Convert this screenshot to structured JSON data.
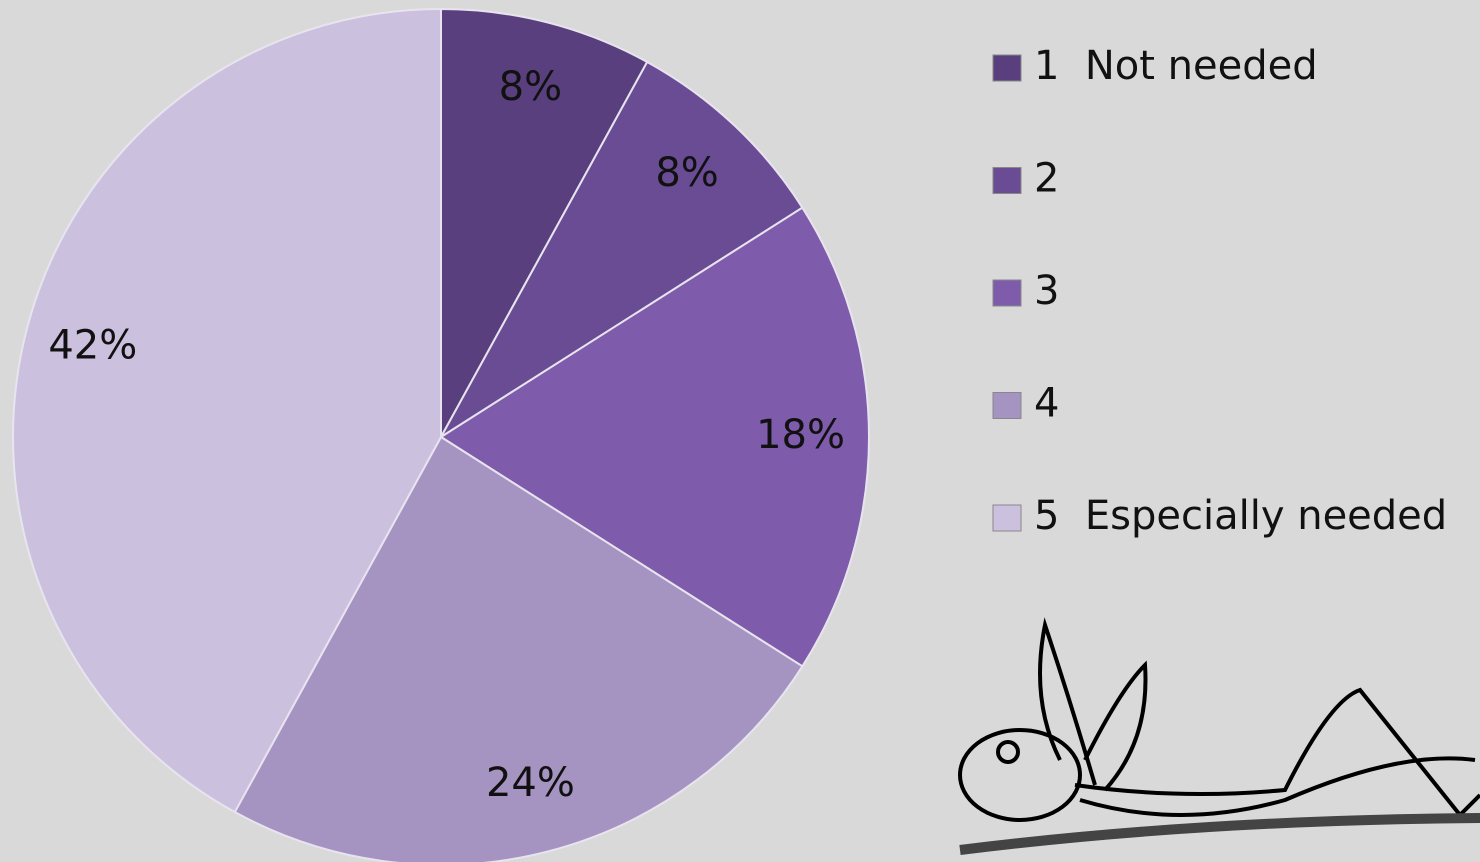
{
  "chart_data": {
    "type": "pie",
    "categories": [
      "1  Not needed",
      "2",
      "3",
      "4",
      "5  Especially needed"
    ],
    "values": [
      8,
      8,
      18,
      24,
      42
    ],
    "value_labels": [
      "8%",
      "8%",
      "18%",
      "24%",
      "42%"
    ],
    "colors": [
      "#5a3f7e",
      "#6a4c95",
      "#7e5bab",
      "#a594c2",
      "#cbc0de"
    ],
    "legend": "right"
  }
}
